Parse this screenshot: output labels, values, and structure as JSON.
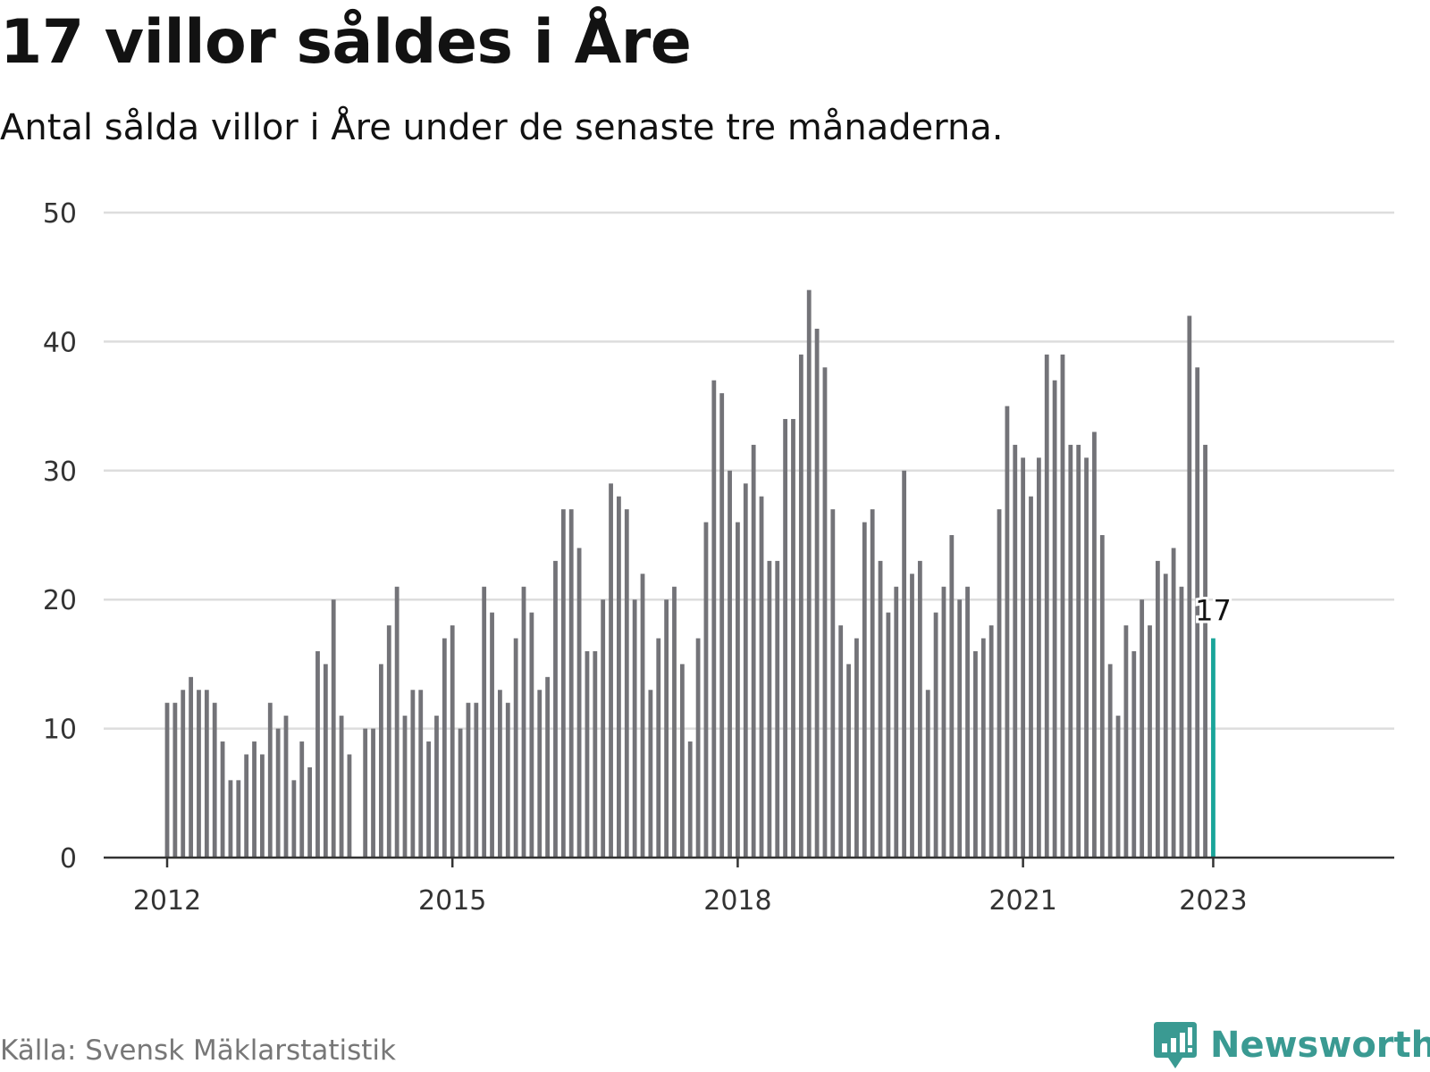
{
  "title": "17 villor såldes i Åre",
  "subtitle": "Antal sålda villor i Åre under de senaste tre månaderna.",
  "source": "Källa: Svensk Mäklarstatistik",
  "brand": "Newsworthy",
  "colors": {
    "bar": "#737378",
    "highlight": "#1aa59a",
    "grid": "#dddddd",
    "axis": "#333333",
    "brand": "#3a9a92"
  },
  "icons": {
    "logo": "bar-chart-speech-bubble-icon"
  },
  "chart_data": {
    "type": "bar",
    "ylim": [
      0,
      50
    ],
    "yticks": [
      0,
      10,
      20,
      30,
      40,
      50
    ],
    "xticks": [
      {
        "label": "2012",
        "date": "2012-01"
      },
      {
        "label": "2015",
        "date": "2015-01"
      },
      {
        "label": "2018",
        "date": "2018-01"
      },
      {
        "label": "2021",
        "date": "2021-01"
      },
      {
        "label": "2023",
        "date": "2023-01"
      }
    ],
    "grid": true,
    "highlight": {
      "date": "2023-01",
      "label": "17"
    },
    "series": [
      {
        "values": [
          {
            "date": "2012-01",
            "value": 12
          },
          {
            "date": "2012-02",
            "value": 12
          },
          {
            "date": "2012-03",
            "value": 13
          },
          {
            "date": "2012-04",
            "value": 14
          },
          {
            "date": "2012-05",
            "value": 13
          },
          {
            "date": "2012-06",
            "value": 13
          },
          {
            "date": "2012-07",
            "value": 12
          },
          {
            "date": "2012-08",
            "value": 9
          },
          {
            "date": "2012-09",
            "value": 6
          },
          {
            "date": "2012-10",
            "value": 6
          },
          {
            "date": "2012-11",
            "value": 8
          },
          {
            "date": "2012-12",
            "value": 9
          },
          {
            "date": "2013-01",
            "value": 8
          },
          {
            "date": "2013-02",
            "value": 12
          },
          {
            "date": "2013-03",
            "value": 10
          },
          {
            "date": "2013-04",
            "value": 11
          },
          {
            "date": "2013-05",
            "value": 6
          },
          {
            "date": "2013-06",
            "value": 9
          },
          {
            "date": "2013-07",
            "value": 7
          },
          {
            "date": "2013-08",
            "value": 16
          },
          {
            "date": "2013-09",
            "value": 15
          },
          {
            "date": "2013-10",
            "value": 20
          },
          {
            "date": "2013-11",
            "value": 11
          },
          {
            "date": "2013-12",
            "value": 8
          },
          {
            "date": "2014-02",
            "value": 10
          },
          {
            "date": "2014-03",
            "value": 10
          },
          {
            "date": "2014-04",
            "value": 15
          },
          {
            "date": "2014-05",
            "value": 18
          },
          {
            "date": "2014-06",
            "value": 21
          },
          {
            "date": "2014-07",
            "value": 11
          },
          {
            "date": "2014-08",
            "value": 13
          },
          {
            "date": "2014-09",
            "value": 13
          },
          {
            "date": "2014-10",
            "value": 9
          },
          {
            "date": "2014-11",
            "value": 11
          },
          {
            "date": "2014-12",
            "value": 17
          },
          {
            "date": "2015-01",
            "value": 18
          },
          {
            "date": "2015-02",
            "value": 10
          },
          {
            "date": "2015-03",
            "value": 12
          },
          {
            "date": "2015-04",
            "value": 12
          },
          {
            "date": "2015-05",
            "value": 21
          },
          {
            "date": "2015-06",
            "value": 19
          },
          {
            "date": "2015-07",
            "value": 13
          },
          {
            "date": "2015-08",
            "value": 12
          },
          {
            "date": "2015-09",
            "value": 17
          },
          {
            "date": "2015-10",
            "value": 21
          },
          {
            "date": "2015-11",
            "value": 19
          },
          {
            "date": "2015-12",
            "value": 13
          },
          {
            "date": "2016-01",
            "value": 14
          },
          {
            "date": "2016-02",
            "value": 23
          },
          {
            "date": "2016-03",
            "value": 27
          },
          {
            "date": "2016-04",
            "value": 27
          },
          {
            "date": "2016-05",
            "value": 24
          },
          {
            "date": "2016-06",
            "value": 16
          },
          {
            "date": "2016-07",
            "value": 16
          },
          {
            "date": "2016-08",
            "value": 20
          },
          {
            "date": "2016-09",
            "value": 29
          },
          {
            "date": "2016-10",
            "value": 28
          },
          {
            "date": "2016-11",
            "value": 27
          },
          {
            "date": "2016-12",
            "value": 20
          },
          {
            "date": "2017-01",
            "value": 22
          },
          {
            "date": "2017-02",
            "value": 13
          },
          {
            "date": "2017-03",
            "value": 17
          },
          {
            "date": "2017-04",
            "value": 20
          },
          {
            "date": "2017-05",
            "value": 21
          },
          {
            "date": "2017-06",
            "value": 15
          },
          {
            "date": "2017-07",
            "value": 9
          },
          {
            "date": "2017-08",
            "value": 17
          },
          {
            "date": "2017-09",
            "value": 26
          },
          {
            "date": "2017-10",
            "value": 37
          },
          {
            "date": "2017-11",
            "value": 36
          },
          {
            "date": "2017-12",
            "value": 30
          },
          {
            "date": "2018-01",
            "value": 26
          },
          {
            "date": "2018-02",
            "value": 29
          },
          {
            "date": "2018-03",
            "value": 32
          },
          {
            "date": "2018-04",
            "value": 28
          },
          {
            "date": "2018-05",
            "value": 23
          },
          {
            "date": "2018-06",
            "value": 23
          },
          {
            "date": "2018-07",
            "value": 34
          },
          {
            "date": "2018-08",
            "value": 34
          },
          {
            "date": "2018-09",
            "value": 39
          },
          {
            "date": "2018-10",
            "value": 44
          },
          {
            "date": "2018-11",
            "value": 41
          },
          {
            "date": "2018-12",
            "value": 38
          },
          {
            "date": "2019-01",
            "value": 27
          },
          {
            "date": "2019-02",
            "value": 18
          },
          {
            "date": "2019-03",
            "value": 15
          },
          {
            "date": "2019-04",
            "value": 17
          },
          {
            "date": "2019-05",
            "value": 26
          },
          {
            "date": "2019-06",
            "value": 27
          },
          {
            "date": "2019-07",
            "value": 23
          },
          {
            "date": "2019-08",
            "value": 19
          },
          {
            "date": "2019-09",
            "value": 21
          },
          {
            "date": "2019-10",
            "value": 30
          },
          {
            "date": "2019-11",
            "value": 22
          },
          {
            "date": "2019-12",
            "value": 23
          },
          {
            "date": "2020-01",
            "value": 13
          },
          {
            "date": "2020-02",
            "value": 19
          },
          {
            "date": "2020-03",
            "value": 21
          },
          {
            "date": "2020-04",
            "value": 25
          },
          {
            "date": "2020-05",
            "value": 20
          },
          {
            "date": "2020-06",
            "value": 21
          },
          {
            "date": "2020-07",
            "value": 16
          },
          {
            "date": "2020-08",
            "value": 17
          },
          {
            "date": "2020-09",
            "value": 18
          },
          {
            "date": "2020-10",
            "value": 27
          },
          {
            "date": "2020-11",
            "value": 35
          },
          {
            "date": "2020-12",
            "value": 32
          },
          {
            "date": "2021-01",
            "value": 31
          },
          {
            "date": "2021-02",
            "value": 28
          },
          {
            "date": "2021-03",
            "value": 31
          },
          {
            "date": "2021-04",
            "value": 39
          },
          {
            "date": "2021-05",
            "value": 37
          },
          {
            "date": "2021-06",
            "value": 39
          },
          {
            "date": "2021-07",
            "value": 32
          },
          {
            "date": "2021-08",
            "value": 32
          },
          {
            "date": "2021-09",
            "value": 31
          },
          {
            "date": "2021-10",
            "value": 33
          },
          {
            "date": "2021-11",
            "value": 25
          },
          {
            "date": "2021-12",
            "value": 15
          },
          {
            "date": "2022-01",
            "value": 11
          },
          {
            "date": "2022-02",
            "value": 18
          },
          {
            "date": "2022-03",
            "value": 16
          },
          {
            "date": "2022-04",
            "value": 20
          },
          {
            "date": "2022-05",
            "value": 18
          },
          {
            "date": "2022-06",
            "value": 23
          },
          {
            "date": "2022-07",
            "value": 22
          },
          {
            "date": "2022-08",
            "value": 24
          },
          {
            "date": "2022-09",
            "value": 21
          },
          {
            "date": "2022-10",
            "value": 42
          },
          {
            "date": "2022-11",
            "value": 38
          },
          {
            "date": "2022-12",
            "value": 32
          },
          {
            "date": "2023-01",
            "value": 17
          }
        ]
      }
    ]
  }
}
